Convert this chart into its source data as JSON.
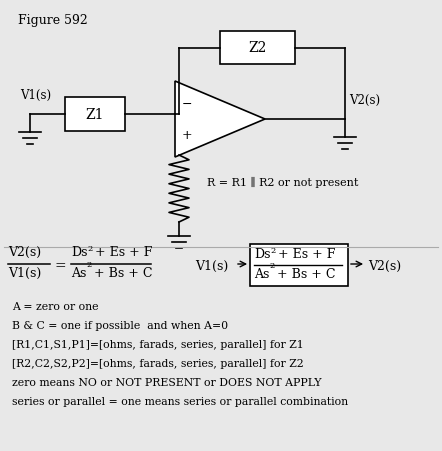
{
  "title": "Figure 592",
  "bg_color": "#e8e8e8",
  "fig_width": 4.42,
  "fig_height": 4.52,
  "dpi": 100,
  "lw": 1.2,
  "legend_lines": [
    "A = zero or one",
    "B & C = one if possible  and when A=0",
    "[R1,C1,S1,P1]=[ohms, farads, series, parallel] for Z1",
    "[R2,C2,S2,P2]=[ohms, farads, series, parallel] for Z2",
    "zero means NO or NOT PRESENT or DOES NOT APPLY",
    "series or parallel = one means series or parallel combination"
  ]
}
